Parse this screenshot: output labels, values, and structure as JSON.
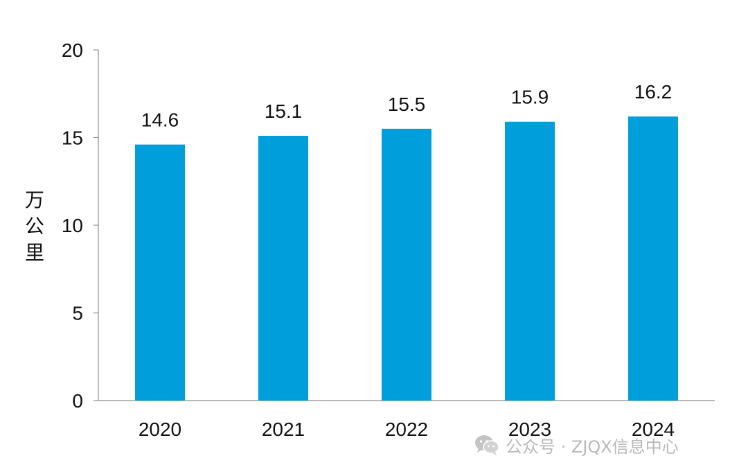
{
  "chart_data": {
    "type": "bar",
    "categories": [
      "2020",
      "2021",
      "2022",
      "2023",
      "2024"
    ],
    "values": [
      14.6,
      15.1,
      15.5,
      15.9,
      16.2
    ],
    "data_labels": [
      "14.6",
      "15.1",
      "15.5",
      "15.9",
      "16.2"
    ],
    "title": "",
    "xlabel": "",
    "ylabel": "万公里",
    "ylim": [
      0,
      20
    ],
    "yticks": [
      0,
      5,
      10,
      15,
      20
    ],
    "bar_color": "#009fdb",
    "grid": false,
    "legend": "none"
  },
  "watermark": {
    "icon": "wechat-icon",
    "text": "公众号 · ZJQX信息中心",
    "color": "#b9b9b9"
  }
}
